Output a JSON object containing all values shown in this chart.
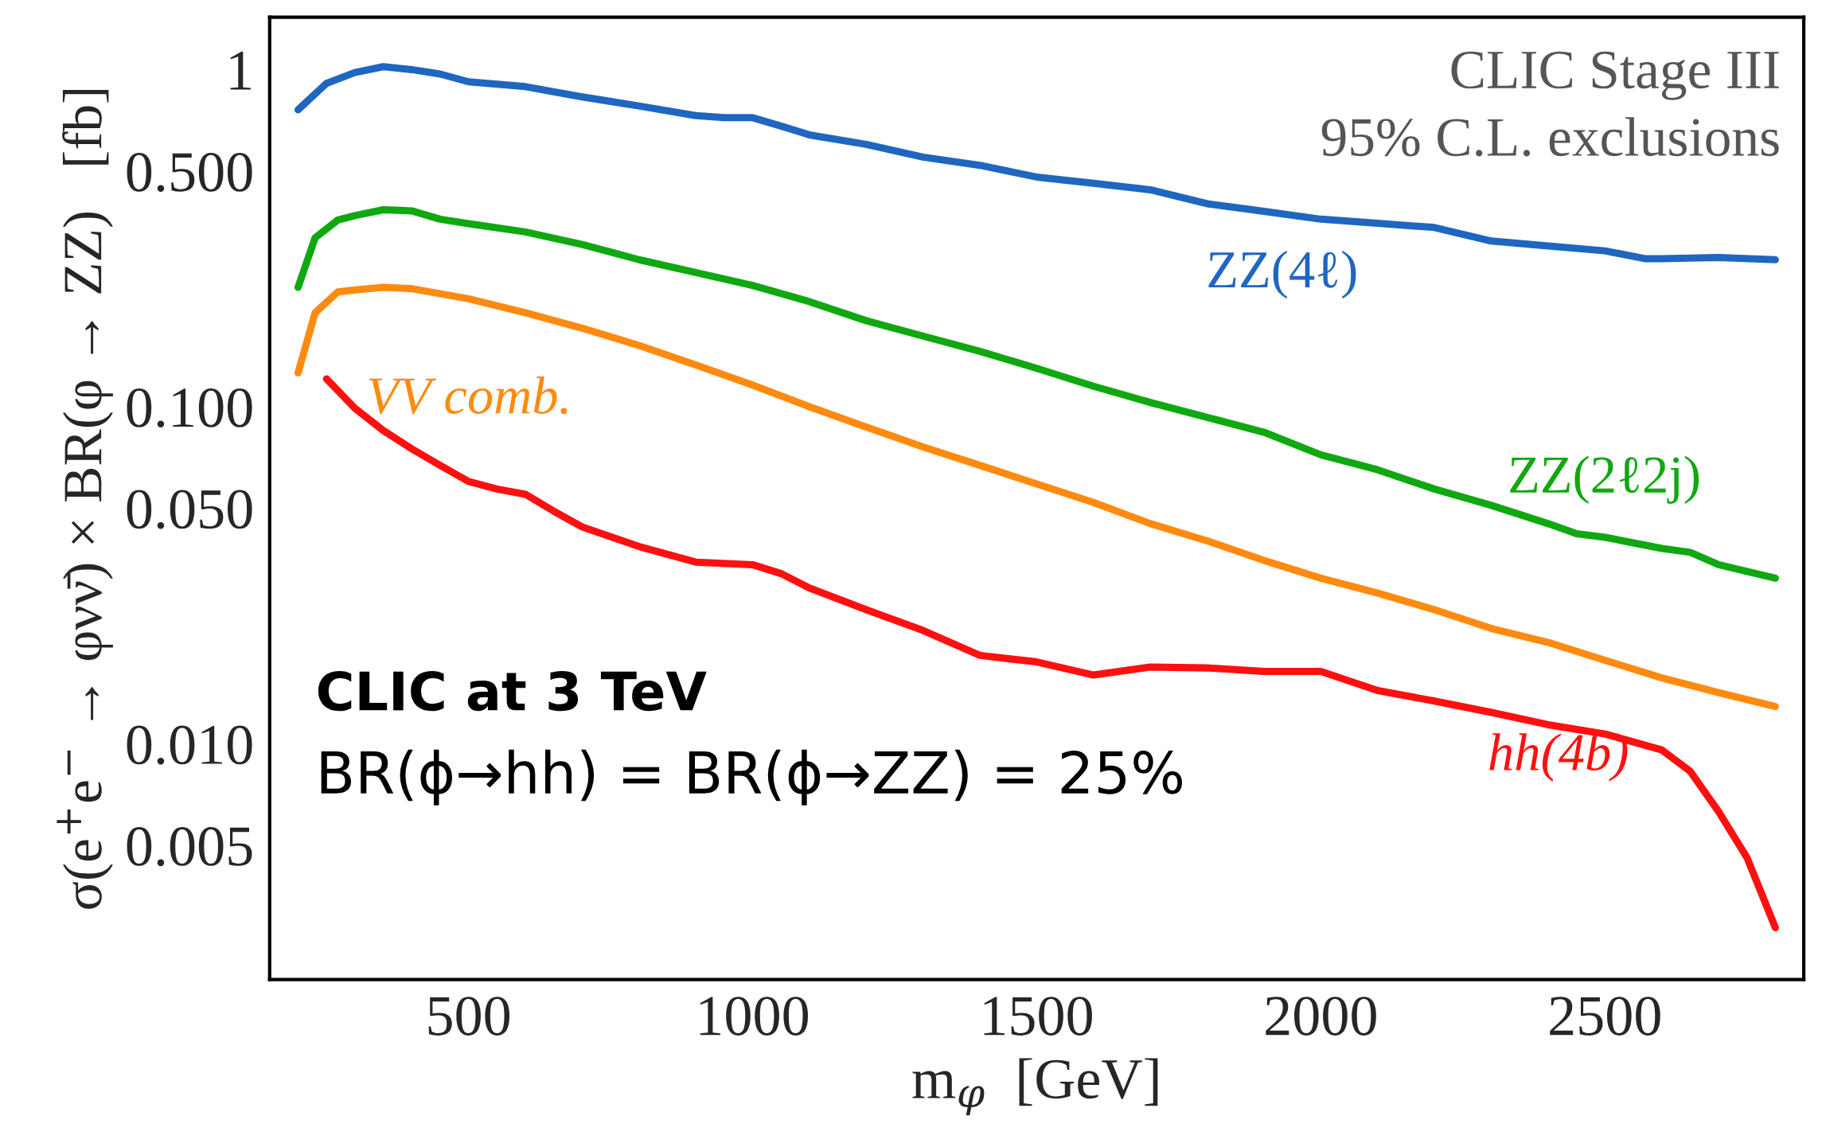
{
  "chart_data": {
    "type": "line",
    "xlabel": "m$_{φ}$  [GeV]",
    "ylabel": "σ(e$^{+}$e$^{−}$ → φνν̄) × BR(φ → ZZ)   [fb]",
    "annotations": [
      "CLIC Stage III",
      "95% C.L. exclusions",
      "CLIC at 3 TeV",
      "BR(ϕ→hh) = BR(ϕ→ZZ) = 25%"
    ],
    "log": "y",
    "marker": "none",
    "line_style": "solid",
    "legend": false,
    "xlim": [
      150,
      2850
    ],
    "ylim": [
      0.002,
      1.43
    ],
    "xticks": [
      500,
      1000,
      1500,
      2000,
      2500
    ],
    "yticks": [
      {
        "value": 0.005,
        "label": "0.005"
      },
      {
        "value": 0.01,
        "label": "0.010"
      },
      {
        "value": 0.05,
        "label": "0.050"
      },
      {
        "value": 0.1,
        "label": "0.100"
      },
      {
        "value": 0.5,
        "label": "0.500"
      },
      1
    ],
    "series": [
      {
        "name": "ZZ(4ℓ)",
        "color": "#1f66c0",
        "x": [
          200,
          250,
          300,
          350,
          400,
          450,
          500,
          600,
          700,
          800,
          900,
          950,
          1000,
          1050,
          1100,
          1200,
          1300,
          1400,
          1500,
          1600,
          1700,
          1800,
          1900,
          2000,
          2100,
          2200,
          2300,
          2400,
          2500,
          2570,
          2600,
          2700,
          2800
        ],
        "values": [
          0.76,
          0.91,
          0.98,
          1.02,
          1.0,
          0.97,
          0.92,
          0.89,
          0.83,
          0.78,
          0.73,
          0.72,
          0.72,
          0.68,
          0.64,
          0.6,
          0.55,
          0.52,
          0.48,
          0.46,
          0.44,
          0.4,
          0.38,
          0.36,
          0.35,
          0.34,
          0.31,
          0.3,
          0.29,
          0.275,
          0.275,
          0.277,
          0.273
        ]
      },
      {
        "name": "ZZ(2ℓ2j)",
        "color": "#10a810",
        "x": [
          200,
          230,
          270,
          300,
          350,
          400,
          450,
          500,
          600,
          700,
          800,
          900,
          1000,
          1100,
          1200,
          1300,
          1400,
          1500,
          1600,
          1700,
          1800,
          1900,
          2000,
          2100,
          2200,
          2300,
          2400,
          2450,
          2500,
          2600,
          2650,
          2700,
          2800
        ],
        "values": [
          0.226,
          0.317,
          0.358,
          0.369,
          0.384,
          0.381,
          0.36,
          0.349,
          0.33,
          0.303,
          0.273,
          0.25,
          0.229,
          0.205,
          0.18,
          0.162,
          0.146,
          0.13,
          0.115,
          0.103,
          0.093,
          0.084,
          0.072,
          0.065,
          0.057,
          0.051,
          0.045,
          0.042,
          0.041,
          0.038,
          0.037,
          0.034,
          0.031
        ]
      },
      {
        "name": "VV comb.",
        "color": "#ff8a10",
        "x": [
          200,
          230,
          270,
          300,
          350,
          400,
          500,
          600,
          700,
          800,
          900,
          1000,
          1100,
          1200,
          1300,
          1400,
          1500,
          1600,
          1700,
          1800,
          1900,
          2000,
          2100,
          2200,
          2300,
          2400,
          2500,
          2600,
          2700,
          2800
        ],
        "values": [
          0.126,
          0.19,
          0.219,
          0.222,
          0.226,
          0.224,
          0.209,
          0.19,
          0.171,
          0.152,
          0.133,
          0.116,
          0.1,
          0.087,
          0.076,
          0.067,
          0.059,
          0.052,
          0.045,
          0.04,
          0.035,
          0.031,
          0.028,
          0.025,
          0.022,
          0.02,
          0.0177,
          0.0157,
          0.0142,
          0.0129
        ]
      },
      {
        "name": "hh(4b)",
        "color": "#ff1010",
        "x": [
          250,
          300,
          350,
          400,
          450,
          500,
          550,
          600,
          650,
          700,
          800,
          900,
          1000,
          1050,
          1100,
          1200,
          1300,
          1400,
          1500,
          1600,
          1700,
          1800,
          1900,
          2000,
          2100,
          2200,
          2300,
          2400,
          2500,
          2600,
          2650,
          2700,
          2750,
          2800
        ],
        "values": [
          0.121,
          0.099,
          0.085,
          0.075,
          0.067,
          0.06,
          0.057,
          0.055,
          0.049,
          0.044,
          0.0385,
          0.0346,
          0.034,
          0.032,
          0.029,
          0.025,
          0.0217,
          0.0183,
          0.0175,
          0.016,
          0.0169,
          0.0168,
          0.0164,
          0.0164,
          0.0144,
          0.0134,
          0.0124,
          0.0114,
          0.0107,
          0.0096,
          0.0083,
          0.0063,
          0.0046,
          0.00285
        ]
      }
    ]
  }
}
